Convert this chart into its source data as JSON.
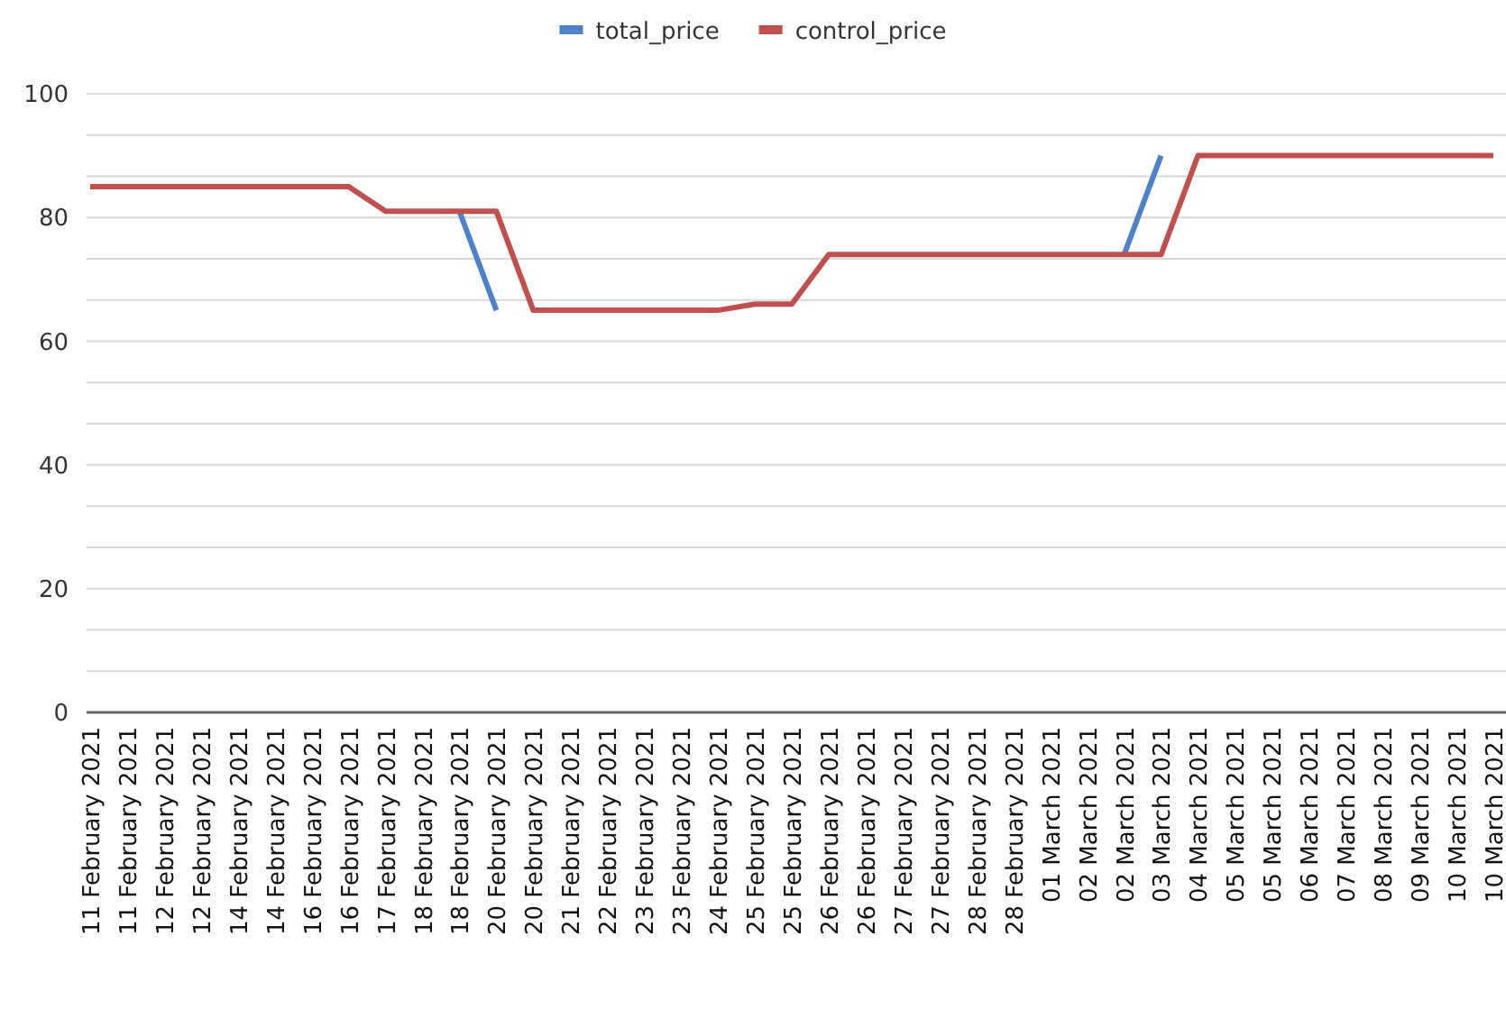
{
  "chart_data": {
    "type": "line",
    "categories": [
      "11 February 2021",
      "11 February 2021",
      "12 February 2021",
      "12 February 2021",
      "14 February 2021",
      "14 February 2021",
      "16 February 2021",
      "16 February 2021",
      "17 February 2021",
      "18 February 2021",
      "18 February 2021",
      "20 February 2021",
      "20 February 2021",
      "21 February 2021",
      "22 February 2021",
      "23 February 2021",
      "23 February 2021",
      "24 February 2021",
      "25 February 2021",
      "25 February 2021",
      "26 February 2021",
      "26 February 2021",
      "27 February 2021",
      "27 February 2021",
      "28 February 2021",
      "28 February 2021",
      "01 March 2021",
      "02 March 2021",
      "02 March 2021",
      "03 March 2021",
      "04 March 2021",
      "05 March 2021",
      "05 March 2021",
      "06 March 2021",
      "07 March 2021",
      "08 March 2021",
      "09 March 2021",
      "10 March 2021",
      "10 March 2021"
    ],
    "series": [
      {
        "name": "total_price",
        "color": "#4f81c7",
        "values": [
          null,
          null,
          null,
          null,
          null,
          null,
          null,
          null,
          null,
          null,
          81,
          65,
          null,
          null,
          null,
          null,
          null,
          null,
          null,
          null,
          null,
          null,
          null,
          null,
          null,
          null,
          null,
          null,
          74,
          90,
          null,
          null,
          null,
          null,
          null,
          null,
          null,
          null,
          null
        ]
      },
      {
        "name": "control_price",
        "color": "#c0504d",
        "values": [
          85,
          85,
          85,
          85,
          85,
          85,
          85,
          85,
          81,
          81,
          81,
          81,
          65,
          65,
          65,
          65,
          65,
          65,
          66,
          66,
          74,
          74,
          74,
          74,
          74,
          74,
          74,
          74,
          74,
          74,
          90,
          90,
          90,
          90,
          90,
          90,
          90,
          90,
          90
        ]
      }
    ],
    "ylim": [
      0,
      100
    ],
    "yticks": [
      0,
      {
        "value": 6.67,
        "label": null
      },
      {
        "value": 13.33,
        "label": null
      },
      20,
      {
        "value": 26.67,
        "label": null
      },
      {
        "value": 33.33,
        "label": null
      },
      40,
      {
        "value": 46.67,
        "label": null
      },
      {
        "value": 53.33,
        "label": null
      },
      60,
      {
        "value": 66.67,
        "label": null
      },
      {
        "value": 73.33,
        "label": null
      },
      80,
      {
        "value": 86.67,
        "label": null
      },
      {
        "value": 93.33,
        "label": null
      },
      100
    ],
    "grid": "y",
    "legend": "top",
    "line_style": "solid"
  }
}
